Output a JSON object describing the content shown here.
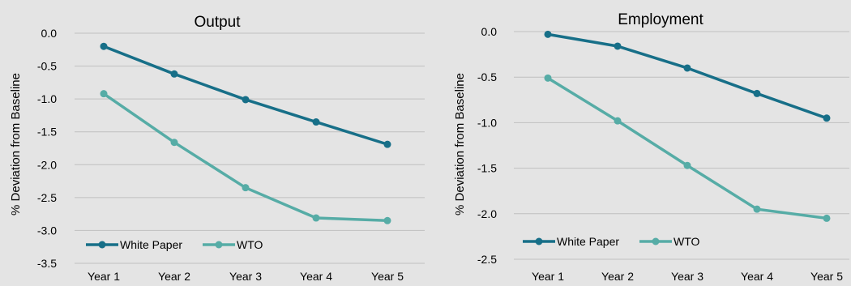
{
  "colors": {
    "background": "#e4e4e4",
    "white_paper": "#176f88",
    "wto": "#56aca6",
    "grid": "#bfbfbf",
    "text": "#000000"
  },
  "chart_data": [
    {
      "type": "line",
      "title": "Output",
      "ylabel": "% Deviation from Baseline",
      "xlabel": "",
      "categories": [
        "Year 1",
        "Year 2",
        "Year 3",
        "Year 4",
        "Year 5"
      ],
      "ylim": [
        -3.5,
        0.0
      ],
      "yticks": [
        0.0,
        -0.5,
        -1.0,
        -1.5,
        -2.0,
        -2.5,
        -3.0,
        -3.5
      ],
      "ytick_labels": [
        "0.0",
        "-0.5",
        "-1.0",
        "-1.5",
        "-2.0",
        "-2.5",
        "-3.0",
        "-3.5"
      ],
      "grid": true,
      "legend_position": "bottom-left",
      "series": [
        {
          "name": "White Paper",
          "color": "#176f88",
          "values": [
            -0.2,
            -0.62,
            -1.01,
            -1.35,
            -1.69
          ]
        },
        {
          "name": "WTO",
          "color": "#56aca6",
          "values": [
            -0.92,
            -1.66,
            -2.35,
            -2.81,
            -2.85
          ]
        }
      ]
    },
    {
      "type": "line",
      "title": "Employment",
      "ylabel": "% Deviation from Baseline",
      "xlabel": "",
      "categories": [
        "Year 1",
        "Year 2",
        "Year 3",
        "Year 4",
        "Year 5"
      ],
      "ylim": [
        -2.5,
        0.0
      ],
      "yticks": [
        0.0,
        -0.5,
        -1.0,
        -1.5,
        -2.0,
        -2.5
      ],
      "ytick_labels": [
        "0.0",
        "-0.5",
        "-1.0",
        "-1.5",
        "-2.0",
        "-2.5"
      ],
      "grid": true,
      "legend_position": "bottom-left",
      "series": [
        {
          "name": "White Paper",
          "color": "#176f88",
          "values": [
            -0.03,
            -0.16,
            -0.4,
            -0.68,
            -0.95
          ]
        },
        {
          "name": "WTO",
          "color": "#56aca6",
          "values": [
            -0.51,
            -0.98,
            -1.47,
            -1.95,
            -2.05
          ]
        }
      ]
    }
  ]
}
